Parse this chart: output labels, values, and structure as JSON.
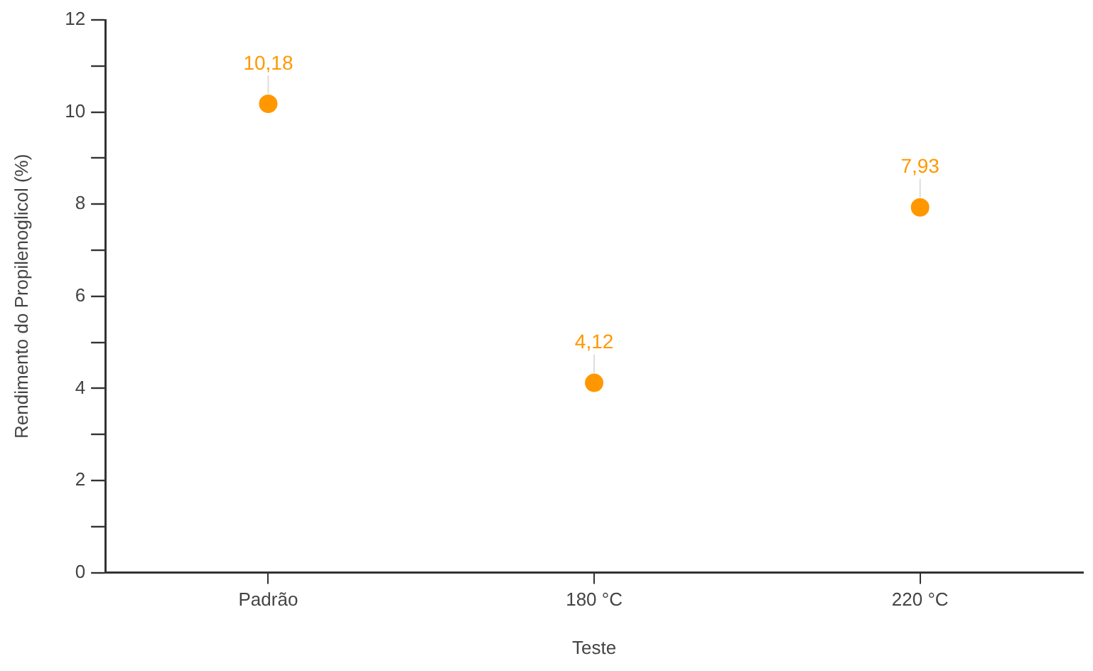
{
  "chart_data": {
    "type": "scatter",
    "xlabel": "Teste",
    "ylabel": "Rendimento do Propilenoglicol (%)",
    "categories": [
      "Padrão",
      "180 °C",
      "220 °C"
    ],
    "series": [
      {
        "color": "#ff9800",
        "values": [
          10.18,
          4.12,
          7.93
        ],
        "value_labels": [
          "10,18",
          "4,12",
          "7,93"
        ]
      }
    ],
    "ylim": [
      0,
      12
    ],
    "yticks": [
      0,
      {
        "value": 1,
        "label": null
      },
      2,
      {
        "value": 3,
        "label": null
      },
      4,
      {
        "value": 5,
        "label": null
      },
      6,
      {
        "value": 7,
        "label": null
      },
      8,
      {
        "value": 9,
        "label": null
      },
      10,
      {
        "value": 11,
        "label": null
      },
      12
    ],
    "grid": false,
    "legend": false,
    "marker": "circle"
  }
}
